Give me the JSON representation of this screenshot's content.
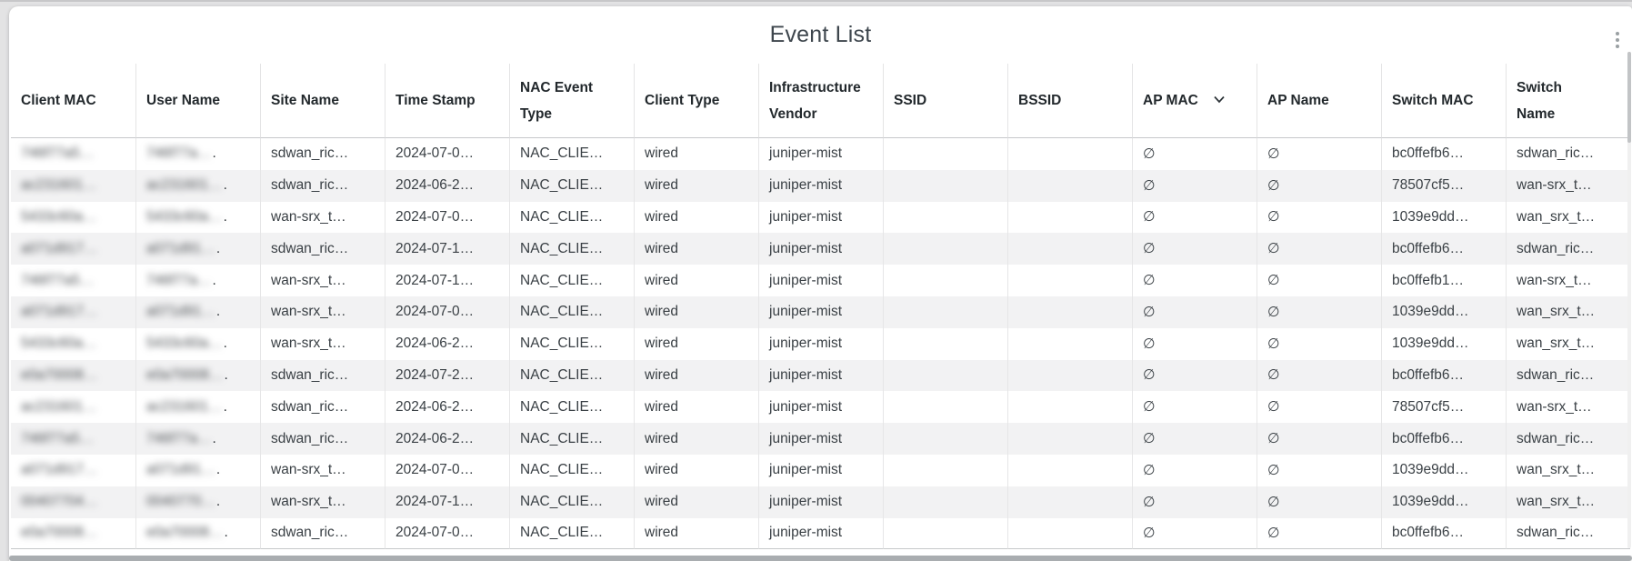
{
  "title": "Event List",
  "icons": {
    "more_options": "kebab-vertical-icon",
    "ap_mac_sort": "chevron-down-icon",
    "empty_value_glyph": "∅"
  },
  "redaction_tail": ".",
  "colors": {
    "stripe_row": "#f2f2f3",
    "column_divider": "#e6e6e7",
    "header_border": "#c6c8ca",
    "header_text": "#22282c",
    "body_text": "#3a4045",
    "empty_glyph": "#c4c7c9",
    "title_text": "#3e464d",
    "scrollbar_thumb": "#a9adb0"
  },
  "columns": [
    {
      "key": "clientMac",
      "label": "Client MAC"
    },
    {
      "key": "userName",
      "label": "User Name"
    },
    {
      "key": "siteName",
      "label": "Site Name"
    },
    {
      "key": "timeStamp",
      "label": "Time Stamp"
    },
    {
      "key": "nacEventType",
      "label": "NAC Event\nType"
    },
    {
      "key": "clientType",
      "label": "Client Type"
    },
    {
      "key": "infraVendor",
      "label": "Infrastructure\nVendor"
    },
    {
      "key": "ssid",
      "label": "SSID"
    },
    {
      "key": "bssid",
      "label": "BSSID"
    },
    {
      "key": "apMac",
      "label": "AP MAC",
      "sort_icon": "chevron-down-icon"
    },
    {
      "key": "apName",
      "label": "AP Name"
    },
    {
      "key": "switchMac",
      "label": "Switch MAC"
    },
    {
      "key": "switchName",
      "label": "Switch\nName"
    }
  ],
  "rows": [
    {
      "clientMac": "746f77a5…",
      "userName": "746f77a…",
      "siteName": "sdwan_ric…",
      "timeStamp": "2024-07-0…",
      "nacEventType": "NAC_CLIE…",
      "clientType": "wired",
      "infraVendor": "juniper-mist",
      "ssid": "",
      "bssid": "",
      "apMac": "∅",
      "apName": "∅",
      "switchMac": "bc0ffefb6…",
      "switchName": "sdwan_ric…"
    },
    {
      "clientMac": "ac231601…",
      "userName": "ac231601…",
      "siteName": "sdwan_ric…",
      "timeStamp": "2024-06-2…",
      "nacEventType": "NAC_CLIE…",
      "clientType": "wired",
      "infraVendor": "juniper-mist",
      "ssid": "",
      "bssid": "",
      "apMac": "∅",
      "apName": "∅",
      "switchMac": "78507cf5…",
      "switchName": "wan-srx_t…"
    },
    {
      "clientMac": "5433c60a…",
      "userName": "5433c60a…",
      "siteName": "wan-srx_t…",
      "timeStamp": "2024-07-0…",
      "nacEventType": "NAC_CLIE…",
      "clientType": "wired",
      "infraVendor": "juniper-mist",
      "ssid": "",
      "bssid": "",
      "apMac": "∅",
      "apName": "∅",
      "switchMac": "1039e9dd…",
      "switchName": "wan_srx_t…"
    },
    {
      "clientMac": "a071d917…",
      "userName": "a071d91…",
      "siteName": "sdwan_ric…",
      "timeStamp": "2024-07-1…",
      "nacEventType": "NAC_CLIE…",
      "clientType": "wired",
      "infraVendor": "juniper-mist",
      "ssid": "",
      "bssid": "",
      "apMac": "∅",
      "apName": "∅",
      "switchMac": "bc0ffefb6…",
      "switchName": "sdwan_ric…"
    },
    {
      "clientMac": "746f77a5…",
      "userName": "746f77a…",
      "siteName": "wan-srx_t…",
      "timeStamp": "2024-07-1…",
      "nacEventType": "NAC_CLIE…",
      "clientType": "wired",
      "infraVendor": "juniper-mist",
      "ssid": "",
      "bssid": "",
      "apMac": "∅",
      "apName": "∅",
      "switchMac": "bc0ffefb1…",
      "switchName": "wan-srx_t…"
    },
    {
      "clientMac": "a071d917…",
      "userName": "a071d91…",
      "siteName": "wan-srx_t…",
      "timeStamp": "2024-07-0…",
      "nacEventType": "NAC_CLIE…",
      "clientType": "wired",
      "infraVendor": "juniper-mist",
      "ssid": "",
      "bssid": "",
      "apMac": "∅",
      "apName": "∅",
      "switchMac": "1039e9dd…",
      "switchName": "wan_srx_t…"
    },
    {
      "clientMac": "5433c60a…",
      "userName": "5433c60a…",
      "siteName": "wan-srx_t…",
      "timeStamp": "2024-06-2…",
      "nacEventType": "NAC_CLIE…",
      "clientType": "wired",
      "infraVendor": "juniper-mist",
      "ssid": "",
      "bssid": "",
      "apMac": "∅",
      "apName": "∅",
      "switchMac": "1039e9dd…",
      "switchName": "wan_srx_t…"
    },
    {
      "clientMac": "e0a70008…",
      "userName": "e0a70008…",
      "siteName": "sdwan_ric…",
      "timeStamp": "2024-07-2…",
      "nacEventType": "NAC_CLIE…",
      "clientType": "wired",
      "infraVendor": "juniper-mist",
      "ssid": "",
      "bssid": "",
      "apMac": "∅",
      "apName": "∅",
      "switchMac": "bc0ffefb6…",
      "switchName": "sdwan_ric…"
    },
    {
      "clientMac": "ac231601…",
      "userName": "ac231601…",
      "siteName": "sdwan_ric…",
      "timeStamp": "2024-06-2…",
      "nacEventType": "NAC_CLIE…",
      "clientType": "wired",
      "infraVendor": "juniper-mist",
      "ssid": "",
      "bssid": "",
      "apMac": "∅",
      "apName": "∅",
      "switchMac": "78507cf5…",
      "switchName": "wan-srx_t…"
    },
    {
      "clientMac": "746f77a5…",
      "userName": "746f77a…",
      "siteName": "sdwan_ric…",
      "timeStamp": "2024-06-2…",
      "nacEventType": "NAC_CLIE…",
      "clientType": "wired",
      "infraVendor": "juniper-mist",
      "ssid": "",
      "bssid": "",
      "apMac": "∅",
      "apName": "∅",
      "switchMac": "bc0ffefb6…",
      "switchName": "sdwan_ric…"
    },
    {
      "clientMac": "a071d917…",
      "userName": "a071d91…",
      "siteName": "wan-srx_t…",
      "timeStamp": "2024-07-0…",
      "nacEventType": "NAC_CLIE…",
      "clientType": "wired",
      "infraVendor": "juniper-mist",
      "ssid": "",
      "bssid": "",
      "apMac": "∅",
      "apName": "∅",
      "switchMac": "1039e9dd…",
      "switchName": "wan_srx_t…"
    },
    {
      "clientMac": "00407704…",
      "userName": "0040770…",
      "siteName": "wan-srx_t…",
      "timeStamp": "2024-07-1…",
      "nacEventType": "NAC_CLIE…",
      "clientType": "wired",
      "infraVendor": "juniper-mist",
      "ssid": "",
      "bssid": "",
      "apMac": "∅",
      "apName": "∅",
      "switchMac": "1039e9dd…",
      "switchName": "wan_srx_t…"
    },
    {
      "clientMac": "e0a70008…",
      "userName": "e0a70008…",
      "siteName": "sdwan_ric…",
      "timeStamp": "2024-07-0…",
      "nacEventType": "NAC_CLIE…",
      "clientType": "wired",
      "infraVendor": "juniper-mist",
      "ssid": "",
      "bssid": "",
      "apMac": "∅",
      "apName": "∅",
      "switchMac": "bc0ffefb6…",
      "switchName": "sdwan_ric…"
    }
  ]
}
